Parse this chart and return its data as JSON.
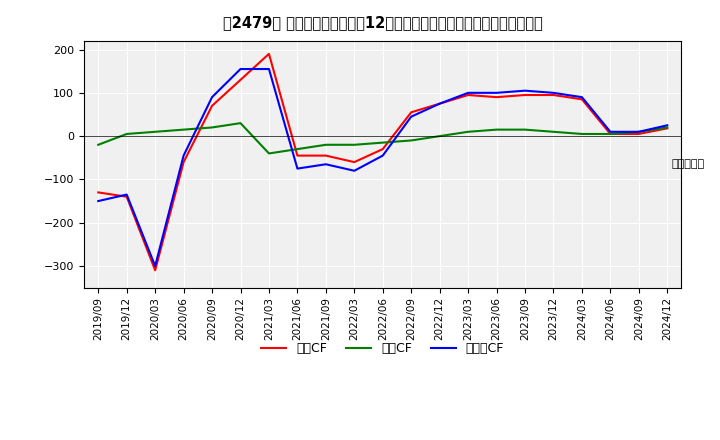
{
  "title": "【2479】 キャッシュフローの12か月移動合計の対前年同期増減額の推移",
  "ylabel": "（百万円）",
  "ylim": [
    -350,
    220
  ],
  "yticks": [
    200,
    100,
    0,
    -100,
    -200,
    -300
  ],
  "x_labels": [
    "2019/09",
    "2019/12",
    "2020/03",
    "2020/06",
    "2020/09",
    "2020/12",
    "2021/03",
    "2021/06",
    "2021/09",
    "2022/03",
    "2022/06",
    "2022/09",
    "2022/12",
    "2023/03",
    "2023/06",
    "2023/09",
    "2023/12",
    "2024/03",
    "2024/06",
    "2024/09",
    "2024/12"
  ],
  "operating_cf": [
    -130,
    -140,
    -310,
    -60,
    70,
    130,
    190,
    -45,
    -45,
    -60,
    -30,
    55,
    75,
    95,
    90,
    95,
    95,
    85,
    5,
    5,
    18
  ],
  "investing_cf": [
    -20,
    5,
    10,
    15,
    20,
    30,
    -40,
    -30,
    -20,
    -20,
    -15,
    -10,
    0,
    10,
    15,
    15,
    10,
    5,
    5,
    10,
    20
  ],
  "free_cf": [
    -150,
    -135,
    -300,
    -45,
    90,
    155,
    155,
    -75,
    -65,
    -80,
    -45,
    45,
    75,
    100,
    100,
    105,
    100,
    90,
    10,
    10,
    25
  ],
  "operating_color": "#ff0000",
  "investing_color": "#008000",
  "free_color": "#0000ff",
  "bg_color": "#ffffff",
  "plot_bg_color": "#f0f0f0",
  "grid_color": "#ffffff",
  "legend_labels": [
    "営業CF",
    "投資CF",
    "フリーCF"
  ]
}
